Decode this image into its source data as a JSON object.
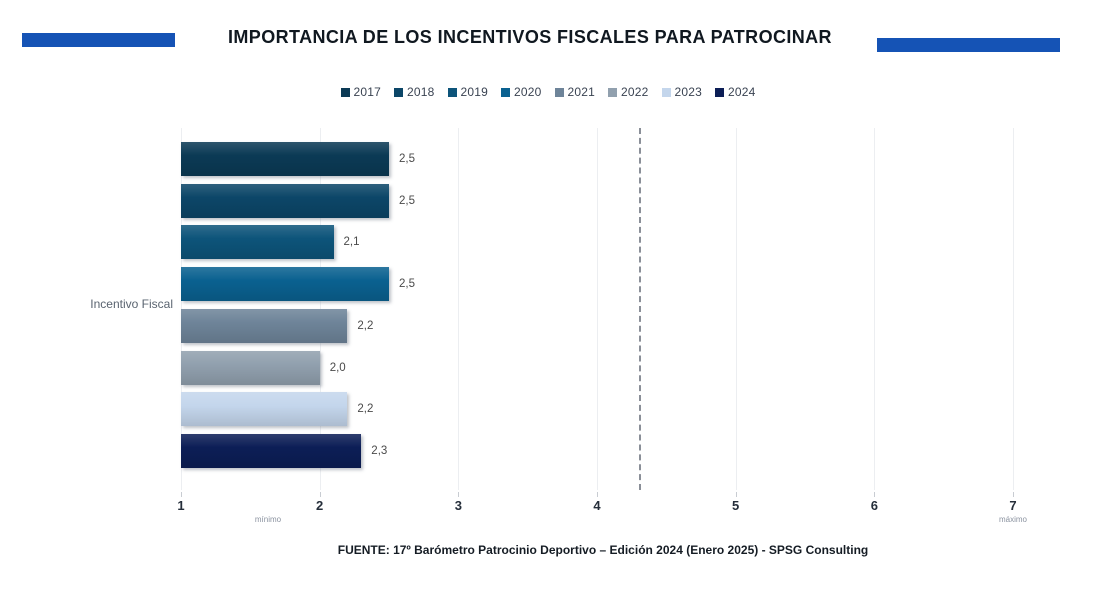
{
  "title": {
    "text": "IMPORTANCIA DE LOS INCENTIVOS FISCALES PARA PATROCINAR",
    "accent_color": "#1553B5"
  },
  "chart_data": {
    "type": "bar",
    "orientation": "horizontal",
    "title": "IMPORTANCIA DE LOS INCENTIVOS FISCALES PARA PATROCINAR",
    "category_label": "Incentivo Fiscal",
    "legend_position": "top",
    "grid": true,
    "series": [
      {
        "name": "2017",
        "value": 2.5,
        "value_label": "2,5",
        "color": "#0B3A55"
      },
      {
        "name": "2018",
        "value": 2.5,
        "value_label": "2,5",
        "color": "#0C4668"
      },
      {
        "name": "2019",
        "value": 2.1,
        "value_label": "2,1",
        "color": "#0D547A"
      },
      {
        "name": "2020",
        "value": 2.5,
        "value_label": "2,5",
        "color": "#0A6190"
      },
      {
        "name": "2021",
        "value": 2.2,
        "value_label": "2,2",
        "color": "#6E8499"
      },
      {
        "name": "2022",
        "value": 2.0,
        "value_label": "2,0",
        "color": "#91A0AE"
      },
      {
        "name": "2023",
        "value": 2.2,
        "value_label": "2,2",
        "color": "#C4D6EC"
      },
      {
        "name": "2024",
        "value": 2.3,
        "value_label": "2,3",
        "color": "#0C1E56"
      }
    ],
    "x_axis": {
      "min": 1,
      "max": 7,
      "ticks": [
        1,
        2,
        3,
        4,
        5,
        6,
        7
      ],
      "min_label": "mínimo",
      "max_label": "máximo"
    },
    "reference_line": {
      "value": 4.3,
      "style": "dashed",
      "color": "#8A8F98"
    }
  },
  "footer": {
    "source": "FUENTE: 17º Barómetro Patrocinio Deportivo – Edición 2024 (Enero 2025)  - SPSG Consulting"
  }
}
